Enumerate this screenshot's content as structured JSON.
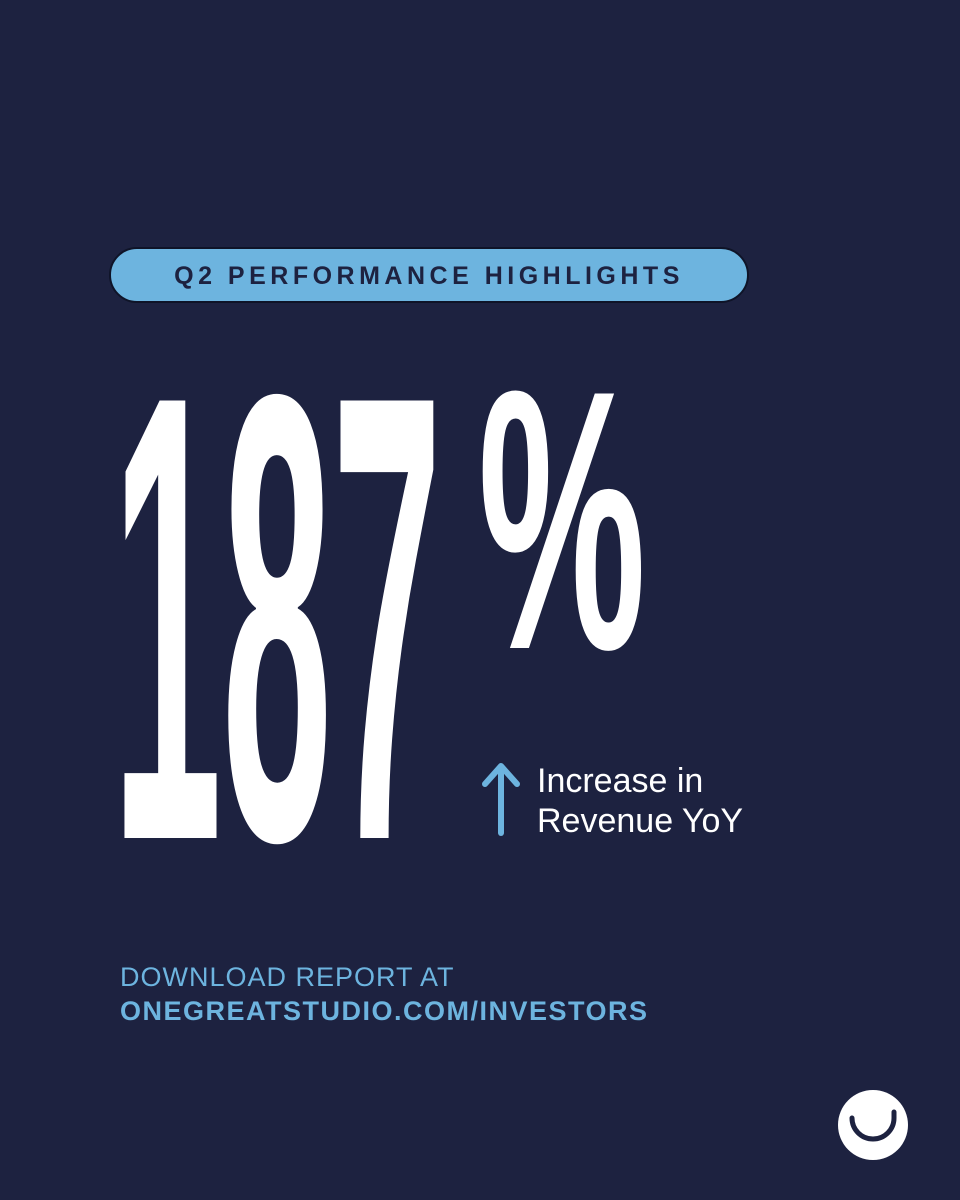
{
  "badge": {
    "text": "Q2 PERFORMANCE HIGHLIGHTS"
  },
  "stat": {
    "number": "187",
    "unit": "%"
  },
  "caption": {
    "lines": [
      "Increase in",
      "Revenue YoY"
    ]
  },
  "footer": {
    "lines": [
      "DOWNLOAD REPORT AT",
      "ONEGREATSTUDIO.COM/INVESTORS"
    ]
  }
}
